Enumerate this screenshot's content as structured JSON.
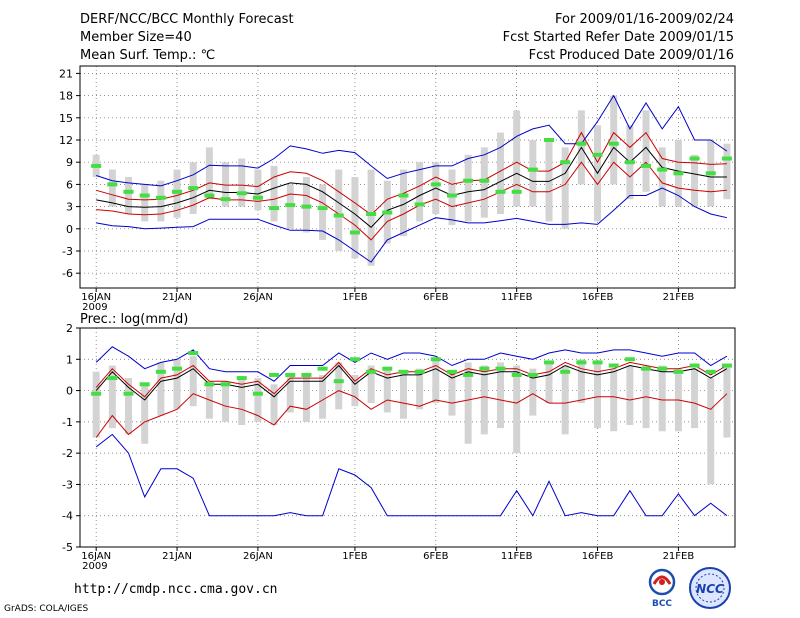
{
  "header": {
    "title": "DERF/NCC/BCC Monthly Forecast",
    "member": "Member Size=40",
    "variable1": "Mean Surf. Temp.: ℃",
    "period": "For 2009/01/16-2009/02/24",
    "started": "Fcst Started Refer Date 2009/01/15",
    "produced": "Fcst Produced Date 2009/01/16"
  },
  "footer": {
    "url": "http://cmdp.ncc.cma.gov.cn",
    "grads": "GrADS: COLA/IGES"
  },
  "logos": {
    "bcc": "BCC",
    "ncc": "NCC"
  },
  "colors": {
    "envelope": "#0000cc",
    "std": "#cc0000",
    "mean": "#000000",
    "obs": "#44dd44",
    "box": "#d3d3d3"
  },
  "chart_data": [
    {
      "type": "line",
      "title": "Mean Surf. Temp.: ℃",
      "days": 40,
      "xticks": [
        {
          "day": 1,
          "label": "16JAN",
          "sub": "2009"
        },
        {
          "day": 6,
          "label": "21JAN"
        },
        {
          "day": 11,
          "label": "26JAN"
        },
        {
          "day": 17,
          "label": "1FEB"
        },
        {
          "day": 22,
          "label": "6FEB"
        },
        {
          "day": 27,
          "label": "11FEB"
        },
        {
          "day": 32,
          "label": "16FEB"
        },
        {
          "day": 37,
          "label": "21FEB"
        }
      ],
      "ylim": [
        -8,
        22
      ],
      "yticks": [
        -6,
        -3,
        0,
        3,
        6,
        9,
        12,
        15,
        18,
        21
      ],
      "series": [
        {
          "name": "max",
          "values": [
            0.8,
            0.4,
            0.3,
            0,
            0.1,
            0.2,
            0.3,
            1.3,
            1.3,
            1.3,
            1.3,
            0.5,
            -0.2,
            -0.2,
            -0.3,
            -1.5,
            -3.0,
            -4.5,
            -1.5,
            -0.5,
            0.5,
            1.5,
            1.2,
            0.8,
            0.8,
            1.1,
            1.4,
            1.0,
            0.6,
            0.6,
            0.8,
            0.6,
            2.5,
            4.5,
            4.5,
            5.5,
            4.5,
            3.0,
            2.0,
            1.5
          ]
        },
        {
          "name": "std_low",
          "values": [
            2.6,
            2.4,
            2.0,
            1.9,
            2.0,
            2.5,
            3.2,
            4.2,
            3.9,
            3.9,
            3.7,
            4.0,
            4.7,
            4.5,
            3.5,
            2.0,
            0.5,
            -1.5,
            1.0,
            2.0,
            3.2,
            4.0,
            3.0,
            3.5,
            4.0,
            5.0,
            6.0,
            5.0,
            5.0,
            6.0,
            9.0,
            6.0,
            9.0,
            7.0,
            9.0,
            6.2,
            5.5,
            5.2,
            5.0,
            5.2
          ]
        },
        {
          "name": "mean",
          "values": [
            3.9,
            3.5,
            3.0,
            2.9,
            3.0,
            3.5,
            4.2,
            5.2,
            4.9,
            4.9,
            4.7,
            5.5,
            6.2,
            6.0,
            5.0,
            3.5,
            2.0,
            0.2,
            2.5,
            3.3,
            4.5,
            5.5,
            4.5,
            5.0,
            5.3,
            6.4,
            7.5,
            6.4,
            6.4,
            7.5,
            11.0,
            7.5,
            11.0,
            9.0,
            11.0,
            8.3,
            7.8,
            7.4,
            7.0,
            7.0
          ]
        },
        {
          "name": "std_high",
          "values": [
            5.2,
            4.6,
            4.0,
            3.9,
            4.0,
            4.5,
            5.2,
            6.2,
            5.9,
            5.9,
            5.7,
            7.0,
            7.7,
            7.5,
            6.5,
            5.0,
            3.5,
            1.9,
            4.0,
            4.8,
            5.8,
            7.0,
            6.0,
            6.5,
            6.6,
            7.8,
            9.0,
            7.8,
            7.8,
            9.0,
            13.0,
            9.0,
            13.0,
            11.0,
            13.0,
            9.5,
            9.0,
            8.9,
            8.7,
            8.8
          ]
        },
        {
          "name": "min",
          "values": [
            7.2,
            6.5,
            6.2,
            6.0,
            5.8,
            6.5,
            7.3,
            8.6,
            8.5,
            8.5,
            8.2,
            9.5,
            11.2,
            10.8,
            10.2,
            10.6,
            10.3,
            8.5,
            6.8,
            7.5,
            8.0,
            8.5,
            8.5,
            9.5,
            10.0,
            11.0,
            12.5,
            13.5,
            14.0,
            11.5,
            11.5,
            14.5,
            18.0,
            13.5,
            17.0,
            13.5,
            16.5,
            12.0,
            12.0,
            10.5
          ]
        }
      ],
      "boxes": [
        [
          7,
          10
        ],
        [
          3,
          8
        ],
        [
          2,
          7
        ],
        [
          1,
          6
        ],
        [
          1,
          6.5
        ],
        [
          1.5,
          8
        ],
        [
          2,
          9
        ],
        [
          4,
          11
        ],
        [
          3,
          9
        ],
        [
          3,
          9.5
        ],
        [
          2.5,
          8
        ],
        [
          1,
          8.5
        ],
        [
          0,
          6
        ],
        [
          -0.5,
          7
        ],
        [
          -1.5,
          6
        ],
        [
          -3,
          8
        ],
        [
          -4,
          7
        ],
        [
          -5,
          8
        ],
        [
          -2,
          6.5
        ],
        [
          -1,
          8
        ],
        [
          1,
          9
        ],
        [
          2,
          9
        ],
        [
          0.5,
          8
        ],
        [
          1,
          10
        ],
        [
          1.5,
          11
        ],
        [
          2,
          13
        ],
        [
          3,
          16
        ],
        [
          3,
          12
        ],
        [
          1,
          12
        ],
        [
          0,
          11
        ],
        [
          6,
          16
        ],
        [
          1,
          14
        ],
        [
          6,
          18
        ],
        [
          4,
          14
        ],
        [
          5,
          16
        ],
        [
          3,
          11
        ],
        [
          3,
          12
        ],
        [
          3,
          10
        ],
        [
          3,
          12
        ],
        [
          4,
          11.5
        ]
      ],
      "obs": [
        8.5,
        6.0,
        5.0,
        4.5,
        4.2,
        5.0,
        5.5,
        4.5,
        4.0,
        4.8,
        4.2,
        2.8,
        3.2,
        3.0,
        2.8,
        1.8,
        -0.5,
        2.0,
        2.2,
        4.5,
        3.3,
        6.0,
        4.5,
        6.5,
        6.5,
        5.0,
        5.0,
        8.0,
        12.0,
        9.0,
        11.5,
        10.0,
        11.5,
        9.0,
        8.5,
        8.0,
        7.5,
        9.5,
        7.5,
        9.5
      ]
    },
    {
      "type": "line",
      "title": "Prec.: log(mm/d)",
      "days": 40,
      "xticks": [
        {
          "day": 1,
          "label": "16JAN",
          "sub": "2009"
        },
        {
          "day": 6,
          "label": "21JAN"
        },
        {
          "day": 11,
          "label": "26JAN"
        },
        {
          "day": 17,
          "label": "1FEB"
        },
        {
          "day": 22,
          "label": "6FEB"
        },
        {
          "day": 27,
          "label": "11FEB"
        },
        {
          "day": 32,
          "label": "16FEB"
        },
        {
          "day": 37,
          "label": "21FEB"
        }
      ],
      "ylim": [
        -5,
        2
      ],
      "yticks": [
        -5,
        -4,
        -3,
        -2,
        -1,
        0,
        1,
        2
      ],
      "series": [
        {
          "name": "min",
          "values": [
            -1.8,
            -1.4,
            -2.0,
            -3.4,
            -2.5,
            -2.5,
            -2.8,
            -4,
            -4,
            -4,
            -4,
            -4,
            -3.9,
            -4,
            -4,
            -2.5,
            -2.7,
            -3.1,
            -4,
            -4,
            -4,
            -4,
            -4,
            -4,
            -4,
            -4,
            -3.2,
            -4,
            -2.9,
            -4,
            -3.9,
            -4,
            -4,
            -3.2,
            -4,
            -4,
            -3.3,
            -4,
            -3.6,
            -4
          ]
        },
        {
          "name": "std_low",
          "values": [
            -1.5,
            -0.8,
            -1.4,
            -1.0,
            -0.8,
            -0.6,
            -0.1,
            -0.3,
            -0.5,
            -0.6,
            -0.8,
            -1.1,
            -0.5,
            -0.6,
            -0.3,
            0.0,
            -0.2,
            -0.6,
            -0.3,
            -0.4,
            -0.5,
            -0.3,
            -0.4,
            -0.3,
            -0.2,
            -0.3,
            -0.4,
            -0.1,
            -0.4,
            -0.4,
            -0.3,
            -0.2,
            -0.2,
            -0.3,
            -0.2,
            -0.3,
            -0.3,
            -0.4,
            -0.6,
            -0.1
          ]
        },
        {
          "name": "mean",
          "values": [
            0.0,
            0.6,
            0.1,
            -0.3,
            0.3,
            0.4,
            0.7,
            0.2,
            0.2,
            0.1,
            0.2,
            -0.2,
            0.3,
            0.3,
            0.3,
            0.8,
            0.2,
            0.6,
            0.4,
            0.5,
            0.5,
            0.7,
            0.4,
            0.6,
            0.5,
            0.6,
            0.6,
            0.4,
            0.5,
            0.8,
            0.6,
            0.5,
            0.6,
            0.8,
            0.7,
            0.6,
            0.6,
            0.7,
            0.4,
            0.7
          ]
        },
        {
          "name": "std_high",
          "values": [
            0.1,
            0.7,
            0.2,
            -0.2,
            0.4,
            0.5,
            0.8,
            0.3,
            0.3,
            0.2,
            0.3,
            -0.1,
            0.4,
            0.4,
            0.4,
            0.9,
            0.3,
            0.7,
            0.5,
            0.6,
            0.6,
            0.8,
            0.5,
            0.7,
            0.6,
            0.7,
            0.7,
            0.5,
            0.6,
            0.9,
            0.7,
            0.6,
            0.7,
            0.9,
            0.8,
            0.7,
            0.7,
            0.8,
            0.5,
            0.8
          ]
        },
        {
          "name": "max",
          "values": [
            0.9,
            1.4,
            1.1,
            0.7,
            0.9,
            1.0,
            1.3,
            0.7,
            0.6,
            0.6,
            0.6,
            0.3,
            0.8,
            0.8,
            0.8,
            1.2,
            0.9,
            1.2,
            1.0,
            1.2,
            1.2,
            1.1,
            0.8,
            1.0,
            1.0,
            1.2,
            1.1,
            1.0,
            1.2,
            1.3,
            1.2,
            1.2,
            1.3,
            1.3,
            1.2,
            1.1,
            1.2,
            1.2,
            0.8,
            1.1
          ]
        }
      ],
      "boxes": [
        [
          -1.5,
          0.6
        ],
        [
          -1.2,
          0.8
        ],
        [
          -1.4,
          0.4
        ],
        [
          -1.7,
          0.2
        ],
        [
          -0.8,
          0.9
        ],
        [
          -0.6,
          1.0
        ],
        [
          -0.5,
          1.1
        ],
        [
          -0.9,
          0.3
        ],
        [
          -1.0,
          0.3
        ],
        [
          -1.1,
          0.4
        ],
        [
          -1.0,
          0.4
        ],
        [
          -1.1,
          0.2
        ],
        [
          -0.7,
          0.5
        ],
        [
          -1.0,
          0.5
        ],
        [
          -0.9,
          0.5
        ],
        [
          -0.6,
          0.9
        ],
        [
          -0.5,
          0.5
        ],
        [
          -0.4,
          0.8
        ],
        [
          -0.7,
          0.7
        ],
        [
          -0.9,
          0.6
        ],
        [
          -0.6,
          0.7
        ],
        [
          -0.4,
          1.0
        ],
        [
          -0.8,
          0.6
        ],
        [
          -1.7,
          0.9
        ],
        [
          -1.4,
          0.8
        ],
        [
          -1.2,
          0.9
        ],
        [
          -2.0,
          0.8
        ],
        [
          -0.8,
          0.7
        ],
        [
          -0.4,
          0.9
        ],
        [
          -1.4,
          0.8
        ],
        [
          -0.4,
          1.0
        ],
        [
          -1.2,
          0.9
        ],
        [
          -1.3,
          0.7
        ],
        [
          -1.1,
          0.8
        ],
        [
          -1.2,
          0.8
        ],
        [
          -1.3,
          0.8
        ],
        [
          -1.3,
          0.7
        ],
        [
          -1.2,
          0.7
        ],
        [
          -3.0,
          0.4
        ],
        [
          -1.5,
          0.8
        ]
      ],
      "obs": [
        -0.1,
        0.4,
        -0.1,
        0.2,
        0.6,
        0.7,
        1.2,
        0.2,
        0.2,
        0.4,
        -0.1,
        0.5,
        0.5,
        0.5,
        0.7,
        0.3,
        1.0,
        0.6,
        0.7,
        0.6,
        0.6,
        1.0,
        0.6,
        0.5,
        0.7,
        0.7,
        0.5,
        0.5,
        0.9,
        0.6,
        0.9,
        0.9,
        0.8,
        1.0,
        0.7,
        0.7,
        0.6,
        0.8,
        0.6,
        0.8
      ]
    }
  ]
}
